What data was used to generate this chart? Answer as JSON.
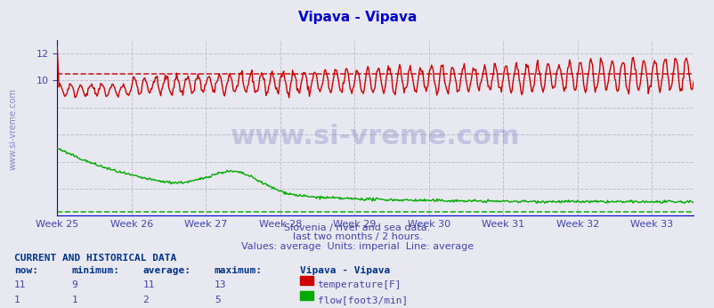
{
  "title": "Vipava - Vipava",
  "title_color": "#0000cc",
  "subtitle_lines": [
    "Slovenia / river and sea data.",
    "last two months / 2 hours.",
    "Values: average  Units: imperial  Line: average"
  ],
  "subtitle_color": "#4444aa",
  "bg_color": "#e8e8f0",
  "plot_bg_color": "#e8e8f0",
  "grid_color": "#c0c0d0",
  "x_axis_color": "#0000cc",
  "y_axis_color": "#0000cc",
  "x_tick_color": "#4444aa",
  "y_tick_color": "#4444aa",
  "week_labels": [
    "Week 25",
    "Week 26",
    "Week 27",
    "Week 28",
    "Week 29",
    "Week 30",
    "Week 31",
    "Week 32",
    "Week 33"
  ],
  "week_positions": [
    0,
    84,
    168,
    252,
    336,
    420,
    504,
    588,
    672
  ],
  "n_points": 720,
  "temp_color": "#cc0000",
  "flow_color": "#00aa00",
  "temp_avg_color": "#cc0000",
  "flow_avg_color": "#00aa00",
  "temp_avg": 10.5,
  "flow_avg": 0.3,
  "temp_now": 11,
  "temp_min": 9,
  "temp_mean": 11,
  "temp_max": 13,
  "flow_now": 1,
  "flow_min": 1,
  "flow_mean": 2,
  "flow_max": 5,
  "ylim_min": 0,
  "ylim_max": 13,
  "watermark": "www.si-vreme.com",
  "watermark_color": "#4444aa",
  "left_label_color": "#4444aa",
  "table_data_color": "#4444aa",
  "table_bold_color": "#003388"
}
